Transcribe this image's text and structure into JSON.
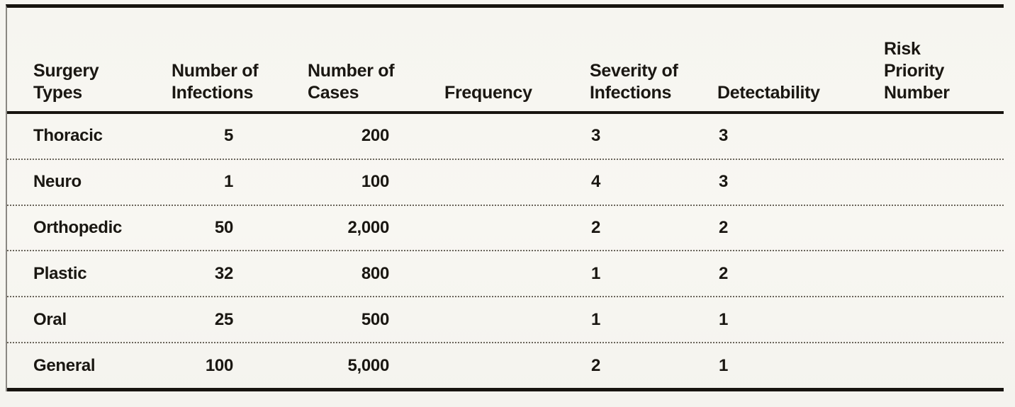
{
  "meta": {
    "paper_color": "#f6f5f0",
    "ink_color": "#17140f",
    "rule_style": "heavy solid rules top/bottom and under header, dotted row separators"
  },
  "table": {
    "columns": [
      {
        "id": "surgery",
        "label": "Surgery\nTypes"
      },
      {
        "id": "infections",
        "label": "Number of\nInfections"
      },
      {
        "id": "cases",
        "label": "Number of\nCases"
      },
      {
        "id": "frequency",
        "label": "Frequency"
      },
      {
        "id": "severity",
        "label": "Severity of\nInfections"
      },
      {
        "id": "detectability",
        "label": "Detectability"
      },
      {
        "id": "rpn",
        "label": "Risk\nPriority\nNumber"
      }
    ],
    "rows": [
      {
        "surgery": "Thoracic",
        "infections": "5",
        "cases": "200",
        "frequency": "",
        "severity": "3",
        "detectability": "3",
        "rpn": ""
      },
      {
        "surgery": "Neuro",
        "infections": "1",
        "cases": "100",
        "frequency": "",
        "severity": "4",
        "detectability": "3",
        "rpn": ""
      },
      {
        "surgery": "Orthopedic",
        "infections": "50",
        "cases": "2,000",
        "frequency": "",
        "severity": "2",
        "detectability": "2",
        "rpn": ""
      },
      {
        "surgery": "Plastic",
        "infections": "32",
        "cases": "800",
        "frequency": "",
        "severity": "1",
        "detectability": "2",
        "rpn": ""
      },
      {
        "surgery": "Oral",
        "infections": "25",
        "cases": "500",
        "frequency": "",
        "severity": "1",
        "detectability": "1",
        "rpn": ""
      },
      {
        "surgery": "General",
        "infections": "100",
        "cases": "5,000",
        "frequency": "",
        "severity": "2",
        "detectability": "1",
        "rpn": ""
      }
    ]
  }
}
